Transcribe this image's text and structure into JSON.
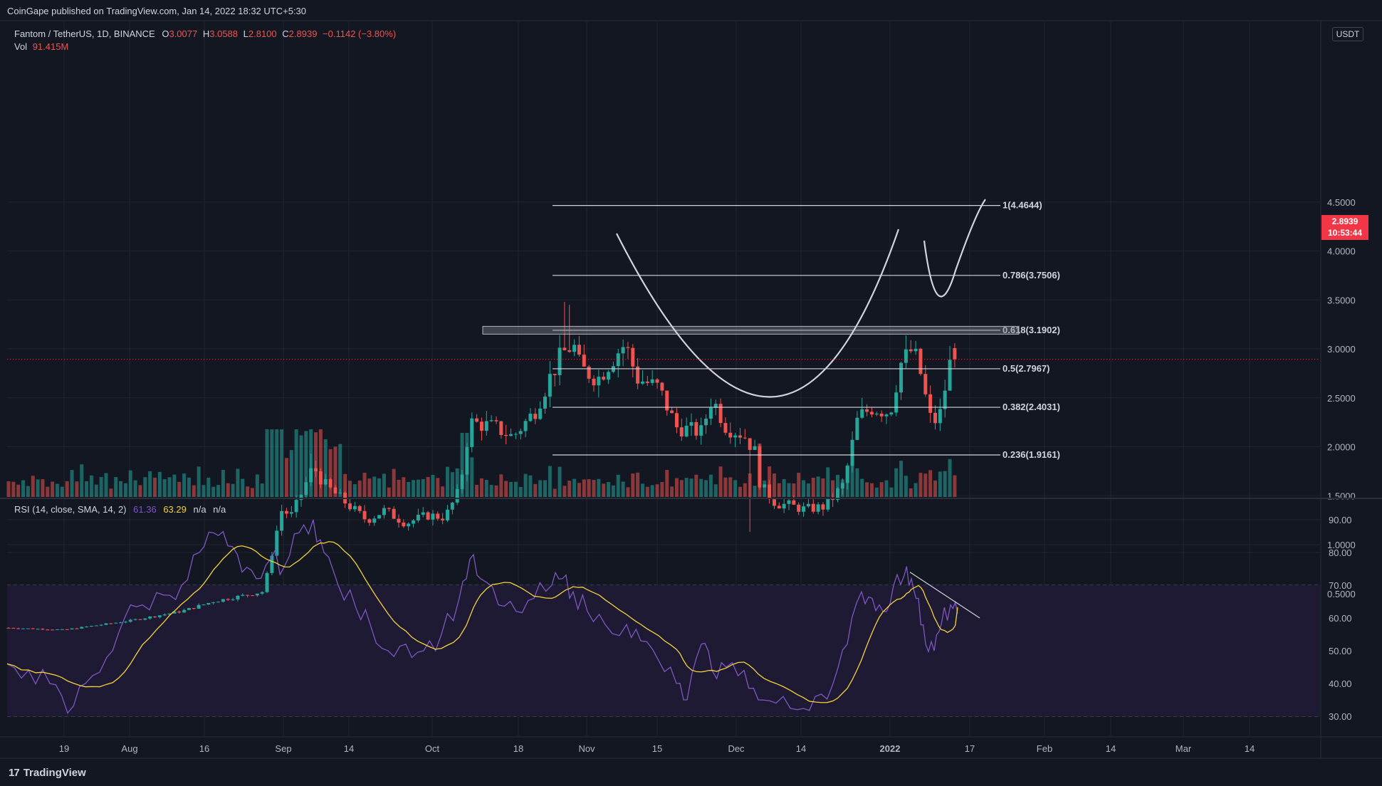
{
  "header": {
    "published": "CoinGape published on TradingView.com, Jan 14, 2022 18:32 UTC+5:30",
    "symbol": "Fantom / TetherUS, 1D, BINANCE",
    "ohlc": [
      {
        "k": "O",
        "v": "3.0077"
      },
      {
        "k": "H",
        "v": "3.0588"
      },
      {
        "k": "L",
        "v": "2.8100"
      },
      {
        "k": "C",
        "v": "2.8939"
      }
    ],
    "change": "−0.1142 (−3.80%)",
    "vol_label": "Vol",
    "vol_value": "91.415M"
  },
  "rsi_header": {
    "label": "RSI (14, close, SMA, 14, 2)",
    "rsi": "61.36",
    "sma": "63.29",
    "na1": "n/a",
    "na2": "n/a"
  },
  "currency_badge": "USDT",
  "price_tag": {
    "price": "2.8939",
    "countdown": "10:53:44"
  },
  "footer_logo": "TradingView",
  "colors": {
    "bg": "#131722",
    "grid": "#1f2430",
    "up": "#26a69a",
    "down": "#ef5350",
    "rsi_line": "#7e57c2",
    "rsi_sma": "#f5d33b",
    "text": "#d1d4dc",
    "axis_text": "#b2b5be",
    "fib_line": "#d1d4dc",
    "tag": "#f23645",
    "rsi_band": "#1e1a33"
  },
  "chart_data": [
    {
      "type": "candlestick",
      "title": "Fantom / TetherUS, 1D, BINANCE",
      "x_tick_labels": [
        "19",
        "Aug",
        "16",
        "Sep",
        "14",
        "Oct",
        "18",
        "Nov",
        "15",
        "Dec",
        "14",
        "2022",
        "17",
        "Feb",
        "14",
        "Mar",
        "14"
      ],
      "y_ticks": [
        "4.5000",
        "4.0000",
        "3.5000",
        "3.0000",
        "2.5000",
        "2.0000",
        "1.5000",
        "1.0000",
        "0.5000"
      ],
      "ylim": [
        0.13,
        4.8
      ],
      "grid": true,
      "series_summary": {
        "start_price": 0.15,
        "local_high_oct": 3.48,
        "low_dec": 1.13,
        "last_close": 2.8939
      },
      "fib_levels": [
        {
          "label": "1(4.4644)",
          "value": 4.4644
        },
        {
          "label": "0.786(3.7506)",
          "value": 3.7506
        },
        {
          "label": "0.618(3.1902)",
          "value": 3.1902
        },
        {
          "label": "0.5(2.7967)",
          "value": 2.7967
        },
        {
          "label": "0.382(2.4031)",
          "value": 2.4031
        },
        {
          "label": "0.236(1.9161)",
          "value": 1.9161
        }
      ],
      "resistance_zone": [
        3.15,
        3.23
      ],
      "annotations": [
        "cup and handle pattern"
      ],
      "volume_series": "bars colored by candle direction"
    },
    {
      "type": "line",
      "title": "RSI (14, close, SMA, 14, 2)",
      "y_ticks": [
        "90.00",
        "80.00",
        "70.00",
        "60.00",
        "50.00",
        "40.00",
        "30.00"
      ],
      "ylim": [
        24,
        95
      ],
      "bands": [
        30,
        50,
        70
      ],
      "last_rsi": 61.36,
      "last_sma": 63.29,
      "annotations": [
        "descending trendline on RSI"
      ]
    }
  ]
}
